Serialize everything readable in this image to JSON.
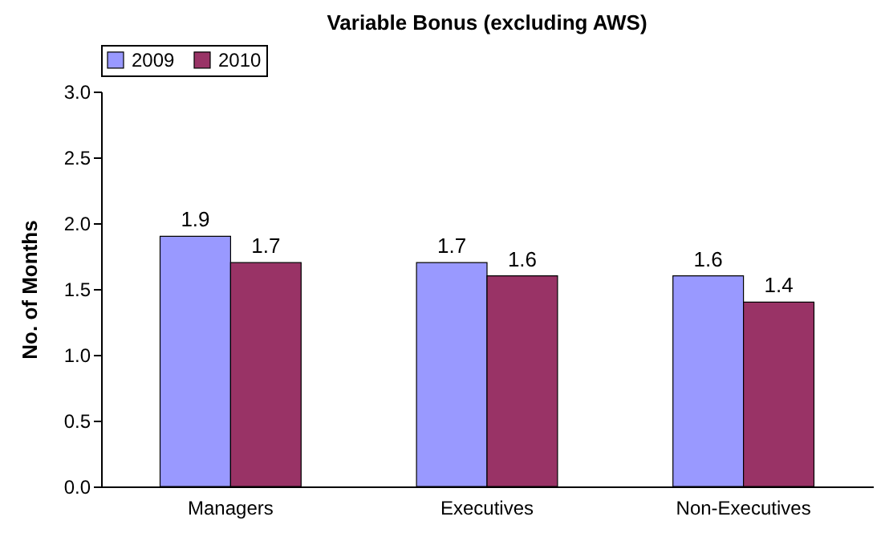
{
  "chart_data": {
    "type": "bar",
    "title": "Variable Bonus (excluding AWS)",
    "ylabel": "No. of Months",
    "categories": [
      "Managers",
      "Executives",
      "Non-Executives"
    ],
    "series": [
      {
        "name": "2009",
        "color": "#9999ff",
        "values": [
          1.9,
          1.7,
          1.6
        ]
      },
      {
        "name": "2010",
        "color": "#993366",
        "values": [
          1.7,
          1.6,
          1.4
        ]
      }
    ],
    "ylim": [
      0,
      3
    ],
    "yticks": [
      {
        "value": 0,
        "label": "0.0"
      },
      {
        "value": 0.5,
        "label": "0.5"
      },
      {
        "value": 1,
        "label": "1.0"
      },
      {
        "value": 1.5,
        "label": "1.5"
      },
      {
        "value": 2,
        "label": "2.0"
      },
      {
        "value": 2.5,
        "label": "2.5"
      },
      {
        "value": 3,
        "label": "3.0"
      }
    ],
    "data_labels": true,
    "legend": "top left",
    "grid": false
  }
}
